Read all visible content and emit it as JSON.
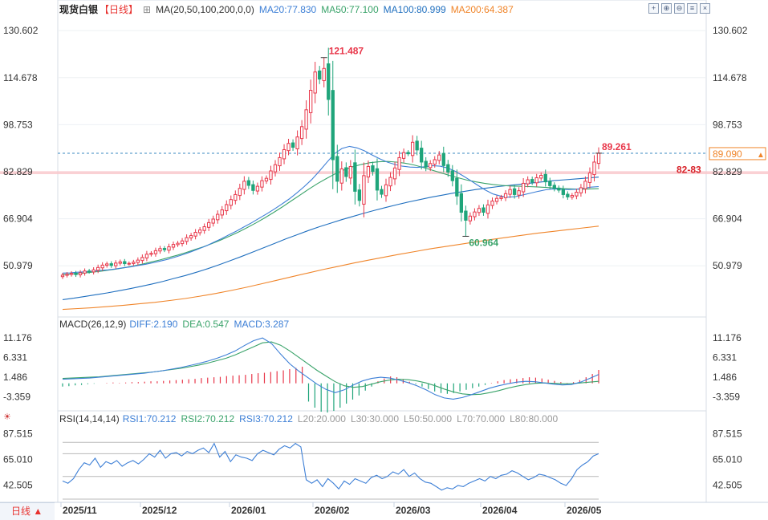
{
  "header": {
    "instrument": "现货白银",
    "period": "【日线】",
    "ma_label": "MA(20,50,100,200,0,0)",
    "ma20": "MA20:77.830",
    "ma50": "MA50:77.100",
    "ma100": "MA100:80.999",
    "ma200": "MA200:64.387",
    "macd_label": "MACD(26,12,9)",
    "diff": "DIFF:2.190",
    "dea": "DEA:0.547",
    "macd": "MACD:3.287",
    "rsi_label": "RSI(14,14,14)",
    "rsi1": "RSI1:70.212",
    "rsi2": "RSI2:70.212",
    "rsi3": "RSI3:70.212",
    "l20": "L20:20.000",
    "l30": "L30:30.000",
    "l50": "L50:50.000",
    "l70": "L70:70.000",
    "l80": "L80:80.000"
  },
  "toolbar_icons": [
    "crosshair-icon",
    "zoom-in-icon",
    "zoom-out-icon",
    "settings-icon",
    "close-icon"
  ],
  "bottom_tab": {
    "label": "日线 ▲"
  },
  "colors": {
    "up": "#e8374a",
    "down": "#1fa57a",
    "ma20": "#3d7fd6",
    "ma50": "#3aa36a",
    "ma100": "#1f6fbf",
    "ma200": "#f0852a",
    "diff": "#3d7fd6",
    "dea": "#3aa36a"
  },
  "chart_data": [
    {
      "type": "candlestick",
      "x_ticks": [
        "2025/11",
        "2025/12",
        "2026/01",
        "2026/02",
        "2026/03",
        "2026/04",
        "2026/05"
      ],
      "y_ticks": [
        "130.602",
        "114.678",
        "98.753",
        "82.829",
        "66.904",
        "50.979"
      ],
      "ylim": [
        35,
        135
      ],
      "annotations": {
        "high_label": "121.487",
        "low_label": "60.964",
        "last_label": "89.261",
        "current_price": "89.090",
        "zone_label": "82-83"
      },
      "zone": [
        82,
        83
      ],
      "current_price_value": 89.09,
      "close_series": [
        47.8,
        48.1,
        48.4,
        48.0,
        48.6,
        49.2,
        49.0,
        49.6,
        50.4,
        51.2,
        51.6,
        51.1,
        51.9,
        52.3,
        51.7,
        51.8,
        52.2,
        52.9,
        53.8,
        54.9,
        55.2,
        56.1,
        56.8,
        56.4,
        57.4,
        58.2,
        58.6,
        59.4,
        60.5,
        61.2,
        62.3,
        63.1,
        64.2,
        65.6,
        66.8,
        68.4,
        69.9,
        71.7,
        73.4,
        75.1,
        77.2,
        79.6,
        78.2,
        76.5,
        77.9,
        79.8,
        80.6,
        83.1,
        85.2,
        87.6,
        90.3,
        92.4,
        91.1,
        94.6,
        98.1,
        103.8,
        110.4,
        116.6,
        114.2,
        117.8,
        107.3,
        86.9,
        79.6,
        83.8,
        81.2,
        84.6,
        76.2,
        73.1,
        81.5,
        84.6,
        82.9,
        76.6,
        75.2,
        78.4,
        80.9,
        84.1,
        87.6,
        89.3,
        88.9,
        92.8,
        90.2,
        86.1,
        84.4,
        85.6,
        86.9,
        88.5,
        84.9,
        82.7,
        79.8,
        74.6,
        69.1,
        66.4,
        67.8,
        69.2,
        70.4,
        69.1,
        71.6,
        72.9,
        73.8,
        74.2,
        75.4,
        76.8,
        75.1,
        76.4,
        78.9,
        80.1,
        79.3,
        80.8,
        81.6,
        79.4,
        78.1,
        77.2,
        76.6,
        75.1,
        74.3,
        74.8,
        75.9,
        77.4,
        79.6,
        82.4,
        86.1,
        89.1
      ],
      "ohlc_hi_lo_note": "High 121.487, low 60.964",
      "ma20": [
        48.5,
        48.6,
        48.8,
        48.9,
        49.1,
        49.4,
        49.6,
        49.9,
        50.3,
        50.6,
        51.1,
        51.5,
        52.0,
        52.6,
        53.2,
        54.0,
        54.8,
        55.7,
        56.7,
        57.7,
        58.9,
        60.1,
        61.4,
        62.7,
        64.1,
        65.5,
        67.0,
        68.5,
        70.1,
        71.8,
        73.6,
        75.6,
        77.8,
        80.2,
        83.0,
        86.0,
        88.9,
        90.7,
        91.4,
        90.9,
        89.9,
        88.5,
        87.2,
        86.1,
        85.3,
        84.7,
        84.4,
        84.3,
        84.5,
        84.9,
        84.7,
        84.1,
        83.0,
        81.5,
        79.9,
        78.2,
        76.6,
        75.3,
        74.6,
        74.2,
        74.4,
        75.0,
        75.6,
        76.2,
        76.7,
        77.0,
        76.9,
        76.8,
        76.9,
        77.2,
        77.6,
        77.8
      ],
      "ma50": [
        48.0,
        48.2,
        48.4,
        48.7,
        49.0,
        49.4,
        49.8,
        50.3,
        50.9,
        51.5,
        52.2,
        52.9,
        53.7,
        54.5,
        55.4,
        56.4,
        57.4,
        58.5,
        59.7,
        61.0,
        62.4,
        63.9,
        65.5,
        67.2,
        69.0,
        70.9,
        72.9,
        74.9,
        76.9,
        78.8,
        80.5,
        82.1,
        83.4,
        84.5,
        85.3,
        85.9,
        86.2,
        86.3,
        86.1,
        85.7,
        85.1,
        84.3,
        83.4,
        82.5,
        81.6,
        80.8,
        80.0,
        79.4,
        78.9,
        78.5,
        78.2,
        78.0,
        77.9,
        77.8,
        77.7,
        77.5,
        77.3,
        77.1,
        77.0,
        76.9,
        77.0,
        77.1
      ],
      "ma100": [
        39.5,
        40.0,
        40.6,
        41.2,
        41.8,
        42.5,
        43.2,
        44.0,
        44.8,
        45.7,
        46.7,
        47.7,
        48.8,
        50.0,
        51.3,
        52.7,
        54.1,
        55.6,
        57.1,
        58.6,
        60.1,
        61.5,
        62.9,
        64.2,
        65.4,
        66.6,
        67.7,
        68.8,
        69.8,
        70.8,
        71.7,
        72.6,
        73.4,
        74.2,
        74.9,
        75.6,
        76.2,
        76.8,
        77.3,
        77.8,
        78.2,
        78.6,
        79.0,
        79.4,
        79.8,
        80.1,
        80.4,
        80.7,
        81.0
      ],
      "ma200": [
        36.2,
        36.5,
        36.8,
        37.2,
        37.6,
        38.1,
        38.6,
        39.2,
        39.9,
        40.7,
        41.6,
        42.6,
        43.7,
        44.9,
        46.1,
        47.3,
        48.5,
        49.7,
        50.8,
        51.9,
        52.9,
        53.9,
        54.9,
        55.8,
        56.7,
        57.5,
        58.3,
        59.1,
        59.9,
        60.6,
        61.3,
        62.0,
        62.6,
        63.2,
        63.8,
        64.4
      ],
      "xlabel": "",
      "ylabel": ""
    },
    {
      "type": "bar+line",
      "name": "MACD",
      "y_ticks": [
        "11.176",
        "6.331",
        "1.486",
        "-3.359"
      ],
      "ylim": [
        -6,
        13
      ],
      "histogram": [
        -0.8,
        -0.7,
        -0.5,
        -0.4,
        -0.2,
        -0.1,
        0.0,
        0.1,
        0.2,
        0.1,
        0.2,
        0.3,
        0.3,
        0.4,
        0.5,
        0.5,
        0.6,
        0.7,
        0.8,
        0.9,
        1.0,
        1.1,
        1.3,
        1.4,
        1.5,
        1.6,
        1.8,
        1.9,
        2.0,
        2.1,
        2.3,
        2.5,
        2.6,
        2.8,
        3.0,
        3.2,
        3.5,
        3.8,
        4.1,
        -4.5,
        -6.0,
        -7.0,
        -7.2,
        -6.8,
        -6.0,
        -5.0,
        -4.0,
        -3.0,
        -1.8,
        -0.8,
        0.5,
        1.2,
        1.7,
        1.5,
        1.0,
        0.4,
        -0.2,
        -0.8,
        -1.4,
        -2.0,
        -2.4,
        -2.6,
        -2.4,
        -2.0,
        -1.6,
        -1.2,
        -0.8,
        -0.4,
        0.1,
        0.5,
        0.8,
        1.0,
        1.1,
        1.3,
        1.5,
        1.4,
        1.2,
        0.9,
        0.6,
        0.3,
        0.1,
        0.3,
        0.8,
        1.5,
        2.3,
        3.3
      ],
      "diff": [
        1.0,
        1.1,
        1.2,
        1.3,
        1.5,
        1.7,
        1.9,
        2.1,
        2.3,
        2.5,
        2.8,
        3.1,
        3.5,
        3.9,
        4.4,
        4.9,
        5.5,
        6.2,
        7.0,
        8.0,
        9.3,
        10.5,
        11.2,
        9.8,
        7.2,
        4.8,
        3.0,
        1.4,
        -0.2,
        -1.5,
        -2.3,
        -1.6,
        -0.4,
        0.6,
        1.2,
        1.5,
        1.3,
        0.8,
        0.2,
        -0.6,
        -1.6,
        -2.8,
        -3.6,
        -3.9,
        -3.5,
        -2.8,
        -2.0,
        -1.2,
        -0.6,
        -0.1,
        0.3,
        0.5,
        0.4,
        0.1,
        -0.2,
        -0.4,
        -0.3,
        0.3,
        1.2,
        2.2
      ],
      "dea": [
        1.2,
        1.3,
        1.4,
        1.5,
        1.6,
        1.8,
        2.0,
        2.2,
        2.4,
        2.6,
        2.8,
        3.1,
        3.4,
        3.7,
        4.1,
        4.5,
        5.0,
        5.6,
        6.2,
        7.0,
        8.0,
        9.0,
        10.0,
        10.2,
        9.4,
        8.0,
        6.4,
        4.8,
        3.2,
        1.8,
        0.4,
        -0.6,
        -1.0,
        -0.8,
        -0.2,
        0.4,
        0.8,
        1.0,
        0.9,
        0.6,
        0.1,
        -0.6,
        -1.4,
        -2.1,
        -2.6,
        -2.8,
        -2.7,
        -2.3,
        -1.8,
        -1.2,
        -0.7,
        -0.3,
        0.0,
        0.1,
        0.0,
        -0.1,
        -0.1,
        0.1,
        0.3,
        0.5
      ]
    },
    {
      "type": "line",
      "name": "RSI",
      "y_ticks": [
        "87.515",
        "65.010",
        "42.505"
      ],
      "ylim": [
        30,
        95
      ],
      "levels": [
        20,
        30,
        50,
        70,
        80
      ],
      "values": [
        46,
        44,
        48,
        56,
        62,
        60,
        66,
        58,
        63,
        61,
        64,
        59,
        62,
        64,
        61,
        65,
        70,
        67,
        73,
        66,
        70,
        71,
        68,
        72,
        70,
        73,
        75,
        71,
        79,
        67,
        72,
        63,
        69,
        67,
        66,
        64,
        70,
        73,
        71,
        69,
        74,
        77,
        75,
        79,
        76,
        47,
        44,
        47,
        41,
        48,
        44,
        39,
        46,
        43,
        48,
        46,
        44,
        49,
        51,
        48,
        50,
        54,
        52,
        56,
        50,
        53,
        48,
        45,
        44,
        41,
        38,
        40,
        39,
        42,
        41,
        44,
        46,
        48,
        46,
        50,
        48,
        51,
        52,
        55,
        53,
        50,
        47,
        49,
        52,
        51,
        49,
        47,
        44,
        42,
        48,
        56,
        60,
        63,
        68,
        70
      ]
    }
  ]
}
